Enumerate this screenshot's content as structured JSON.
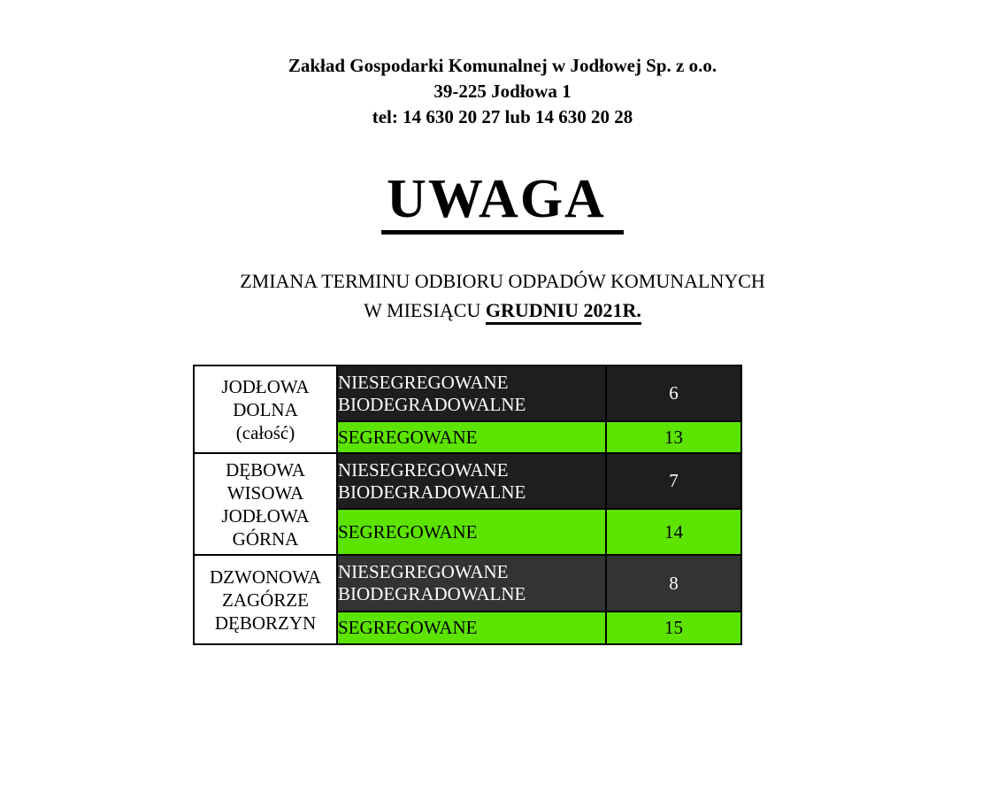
{
  "header": {
    "company": "Zakład Gospodarki Komunalnej w Jodłowej Sp. z o.o.",
    "address": "39-225 Jodłowa 1",
    "phone": "tel: 14 630 20 27 lub 14 630 20 28"
  },
  "notice": {
    "title": "UWAGA",
    "subtitle_line1": "ZMIANA TERMINU ODBIORU ODPADÓW KOMUNALNYCH",
    "subtitle_line2_prefix": "W MIESIĄCU ",
    "subtitle_line2_emphasis": "GRUDNIU 2021R."
  },
  "colors": {
    "dark_row": "#1e1e1e",
    "dark_row_light": "#333333",
    "green_row": "#5ce300",
    "dark_row_text": "#ffffff",
    "green_row_text": "#000000"
  },
  "schedule_table": {
    "groups": [
      {
        "area_lines": [
          "JODŁOWA",
          "DOLNA",
          "(całość)"
        ],
        "rows": [
          {
            "waste_type": "NIESEGREGOWANE BIODEGRADOWALNE",
            "day": "6"
          },
          {
            "waste_type": "SEGREGOWANE",
            "day": "13"
          }
        ]
      },
      {
        "area_lines": [
          "DĘBOWA",
          "WISOWA",
          "JODŁOWA",
          "GÓRNA"
        ],
        "rows": [
          {
            "waste_type": "NIESEGREGOWANE BIODEGRADOWALNE",
            "day": "7"
          },
          {
            "waste_type": "SEGREGOWANE",
            "day": "14"
          }
        ]
      },
      {
        "area_lines": [
          "DZWONOWA",
          "ZAGÓRZE",
          "DĘBORZYN"
        ],
        "rows": [
          {
            "waste_type": "NIESEGREGOWANE BIODEGRADOWALNE",
            "day": "8"
          },
          {
            "waste_type": "SEGREGOWANE",
            "day": "15"
          }
        ]
      }
    ]
  }
}
